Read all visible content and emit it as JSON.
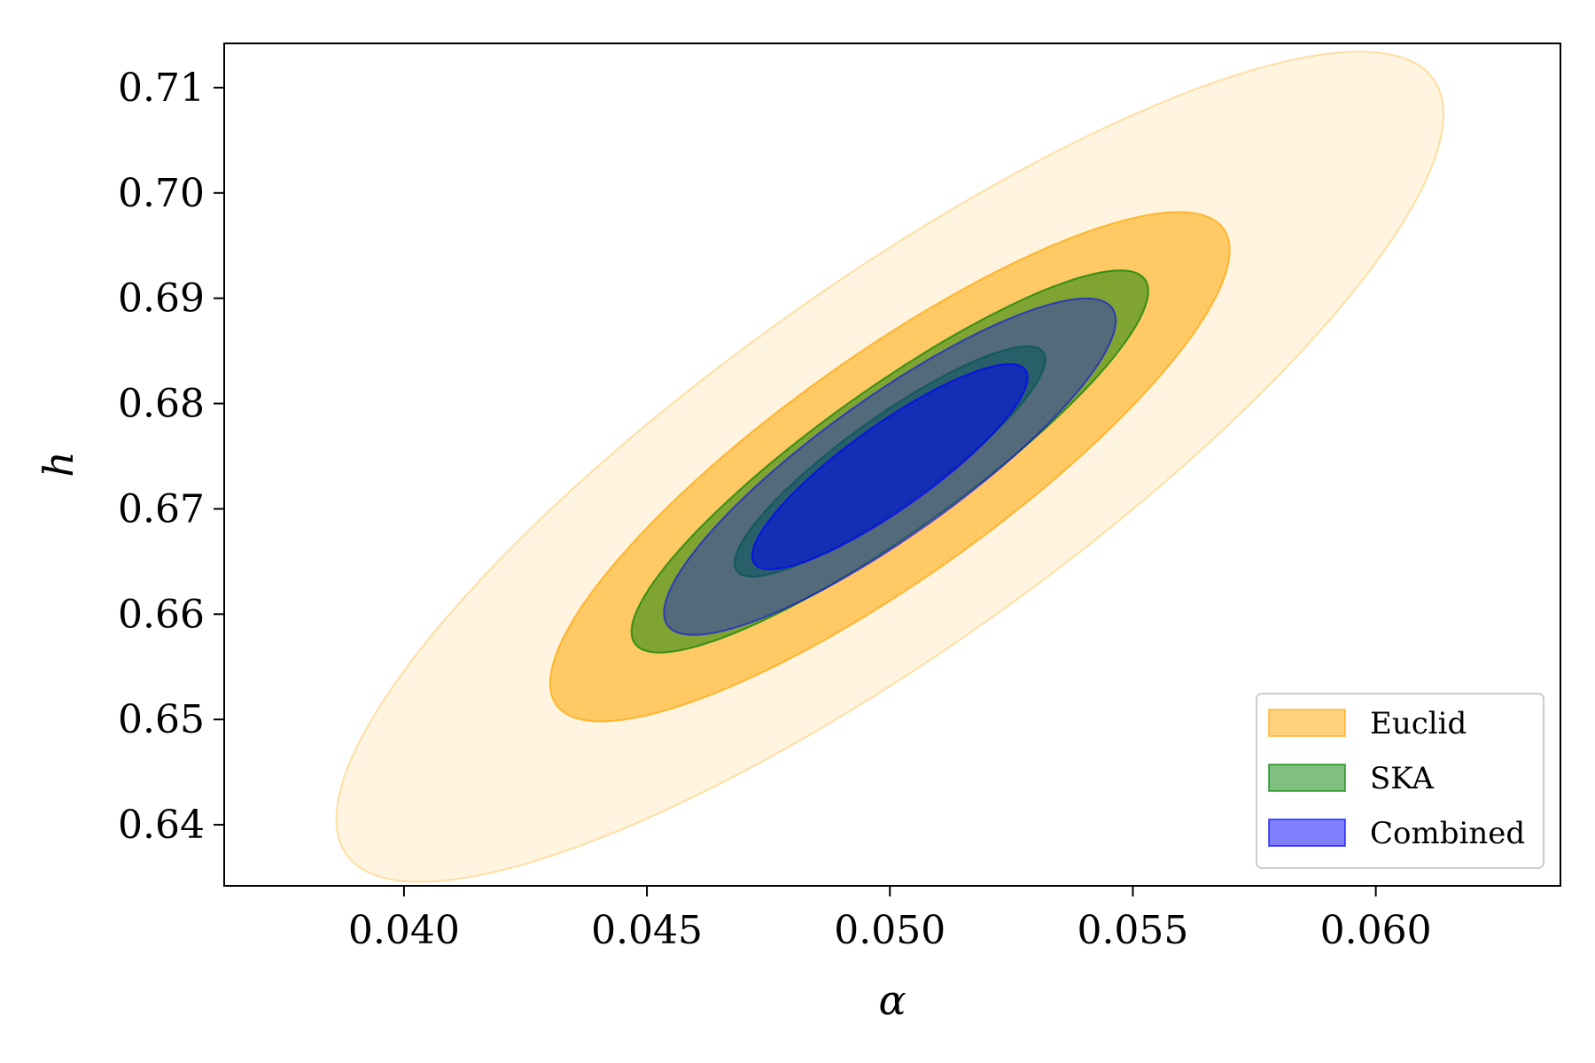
{
  "chart_data": {
    "type": "contour",
    "title": "",
    "xlabel": "α",
    "ylabel": "h",
    "xlim": [
      0.0363,
      0.0638
    ],
    "ylim": [
      0.6342,
      0.7142
    ],
    "xticks": [
      "0.040",
      "0.045",
      "0.050",
      "0.055",
      "0.060"
    ],
    "xtick_values": [
      0.04,
      0.045,
      0.05,
      0.055,
      0.06
    ],
    "yticks": [
      "0.64",
      "0.65",
      "0.66",
      "0.67",
      "0.68",
      "0.69",
      "0.70",
      "0.71"
    ],
    "ytick_values": [
      0.64,
      0.65,
      0.66,
      0.67,
      0.68,
      0.69,
      0.7,
      0.71
    ],
    "grid": false,
    "legend_position": "lower-right",
    "series": [
      {
        "name": "Euclid",
        "color": "#FFA500",
        "center": [
          0.05,
          0.674
        ],
        "contours": [
          {
            "level": "1-sigma",
            "alpha": 0.55,
            "x_range": [
              0.0423,
              0.0577
            ],
            "y_range": [
              0.652,
              0.696
            ]
          },
          {
            "level": "2-sigma",
            "alpha": 0.12,
            "x_range": [
              0.0375,
              0.0625
            ],
            "y_range": [
              0.638,
              0.71
            ]
          }
        ]
      },
      {
        "name": "SKA",
        "color": "#008000",
        "center": [
          0.05,
          0.6745
        ],
        "contours": [
          {
            "level": "1-sigma",
            "alpha": 0.5,
            "x_range": [
              0.0461,
              0.0539
            ],
            "y_range": [
              0.6655,
              0.683
            ]
          },
          {
            "level": "2-sigma",
            "alpha": 0.5,
            "x_range": [
              0.0434,
              0.0566
            ],
            "y_range": [
              0.6605,
              0.6888
            ]
          }
        ]
      },
      {
        "name": "Combined",
        "color": "#0000FF",
        "center": [
          0.05,
          0.674
        ],
        "contours": [
          {
            "level": "1-sigma",
            "alpha": 0.5,
            "x_range": [
              0.0467,
              0.0533
            ],
            "y_range": [
              0.6657,
              0.6823
            ]
          },
          {
            "level": "2-sigma",
            "alpha": 0.35,
            "x_range": [
              0.0446,
              0.0554
            ],
            "y_range": [
              0.6603,
              0.6876
            ]
          }
        ]
      }
    ]
  }
}
